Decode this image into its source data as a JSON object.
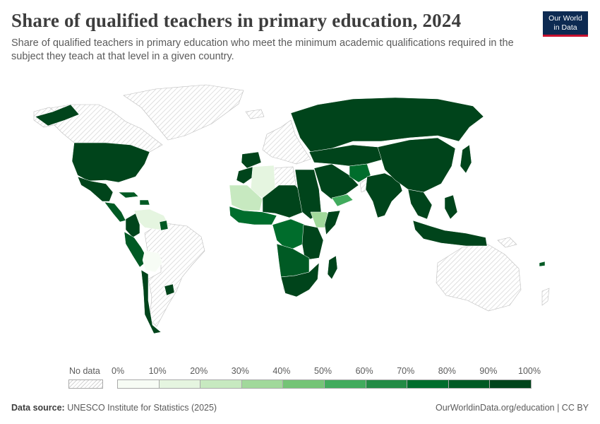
{
  "header": {
    "title": "Share of qualified teachers in primary education, 2024",
    "subtitle": "Share of qualified teachers in primary education who meet the minimum academic qualifications required in the subject they teach at that level in a given country."
  },
  "logo": {
    "line1": "Our World",
    "line2": "in Data"
  },
  "footer": {
    "source_label": "Data source:",
    "source": "UNESCO Institute for Statistics (2025)",
    "url": "OurWorldinData.org/education | CC BY"
  },
  "legend": {
    "no_data_label": "No data",
    "ticks": [
      "0%",
      "10%",
      "20%",
      "30%",
      "40%",
      "50%",
      "60%",
      "70%",
      "80%",
      "90%",
      "100%"
    ],
    "bin_colors": [
      "#f7fcf5",
      "#e5f5e0",
      "#c7e9c0",
      "#a1d99b",
      "#74c476",
      "#41ab5d",
      "#238b45",
      "#006d2c",
      "#005a24",
      "#00441b"
    ]
  },
  "chart_data": {
    "type": "map",
    "year": 2024,
    "unit": "%",
    "scale_range": [
      0,
      100
    ],
    "no_data_color": "hatched",
    "regions": [
      {
        "id": "north-america",
        "value": 95
      },
      {
        "id": "mexico",
        "value": 92
      },
      {
        "id": "central-america",
        "value": 85
      },
      {
        "id": "caribbean",
        "value": 88
      },
      {
        "id": "venezuela-guianas",
        "value": 15
      },
      {
        "id": "colombia",
        "value": 90
      },
      {
        "id": "ecuador-peru",
        "value": 85
      },
      {
        "id": "bolivia",
        "value": 5
      },
      {
        "id": "chile",
        "value": 92
      },
      {
        "id": "uruguay",
        "value": 95
      },
      {
        "id": "iberia",
        "value": 95
      },
      {
        "id": "morocco",
        "value": 90
      },
      {
        "id": "algeria",
        "value": 12
      },
      {
        "id": "mauritania-mali",
        "value": 20
      },
      {
        "id": "west-africa",
        "value": 75
      },
      {
        "id": "sahel-central-africa",
        "value": 92
      },
      {
        "id": "egypt-sudan",
        "value": 95
      },
      {
        "id": "ethiopia-somalia",
        "value": 30
      },
      {
        "id": "central-africa",
        "value": 70
      },
      {
        "id": "east-africa",
        "value": 92
      },
      {
        "id": "angola-zambia",
        "value": 85
      },
      {
        "id": "southern-africa",
        "value": 95
      },
      {
        "id": "madagascar",
        "value": 95
      },
      {
        "id": "arabia",
        "value": 95
      },
      {
        "id": "yemen",
        "value": 50
      },
      {
        "id": "russia-central-asia",
        "value": 97
      },
      {
        "id": "afghanistan",
        "value": 70
      },
      {
        "id": "south-asia",
        "value": 95
      },
      {
        "id": "china",
        "value": 97
      },
      {
        "id": "southeast-asia",
        "value": 93
      },
      {
        "id": "philippines",
        "value": 95
      },
      {
        "id": "indonesia-png",
        "value": 93
      },
      {
        "id": "caribbean-small",
        "value": 80
      }
    ]
  }
}
